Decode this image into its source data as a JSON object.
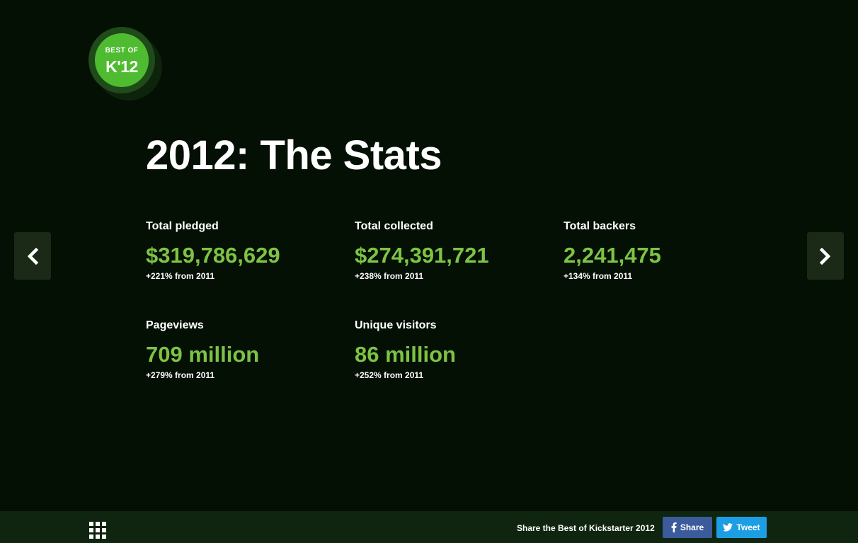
{
  "badge": {
    "line1": "BEST OF",
    "line2": "K'12"
  },
  "title": "2012: The Stats",
  "stats": [
    {
      "label": "Total pledged",
      "value": "$319,786,629",
      "change": "+221% from 2011"
    },
    {
      "label": "Total collected",
      "value": "$274,391,721",
      "change": "+238% from 2011"
    },
    {
      "label": "Total backers",
      "value": "2,241,475",
      "change": "+134% from 2011"
    },
    {
      "label": "Pageviews",
      "value": "709 million",
      "change": "+279% from 2011"
    },
    {
      "label": "Unique visitors",
      "value": "86 million",
      "change": "+252% from 2011"
    }
  ],
  "nav": {
    "prev_icon": "chevron-left-icon",
    "next_icon": "chevron-right-icon"
  },
  "footer": {
    "menu_icon": "grid-icon",
    "share_text": "Share the Best of Kickstarter 2012",
    "facebook_label": "Share",
    "twitter_label": "Tweet"
  },
  "colors": {
    "background": "#041004",
    "accent": "#7dc344",
    "badge": "#4fbb31",
    "footer": "#102510",
    "facebook": "#3b5b9a",
    "twitter": "#1b9ee4"
  }
}
